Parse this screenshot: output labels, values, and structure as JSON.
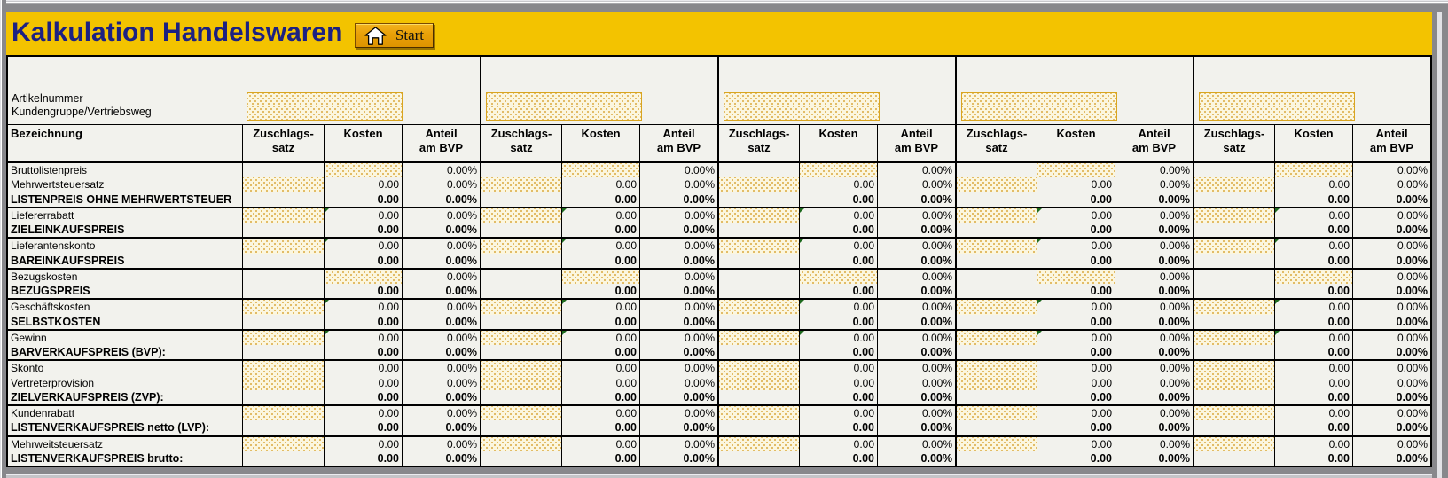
{
  "header": {
    "title": "Kalkulation Handelswaren",
    "start_label": "Start"
  },
  "form": {
    "labels": [
      "Artikelnummer",
      "Kundengruppe/Vertriebsweg"
    ]
  },
  "table": {
    "bezeichnung_header": "Bezeichnung",
    "group_count": 5,
    "column_headers": {
      "zuschlag_line1": "Zuschlags-",
      "zuschlag_line2": "satz",
      "kosten": "Kosten",
      "anteil_line1": "Anteil",
      "anteil_line2": "am BVP"
    },
    "sections": [
      {
        "rows": [
          {
            "label": "Bruttolistenpreis",
            "zuschlag": "",
            "kosten": "input",
            "anteil": "0.00%"
          },
          {
            "label": "Mehrwertsteuersatz",
            "zuschlag": "input",
            "kosten": "0.00",
            "anteil": "0.00%"
          },
          {
            "label": "LISTENPREIS OHNE MEHRWERTSTEUER",
            "bold": true,
            "zuschlag": "",
            "kosten": "0.00",
            "anteil": "0.00%"
          }
        ]
      },
      {
        "rows": [
          {
            "label": "Liefererrabatt",
            "zuschlag": "input",
            "kosten": "0.00",
            "anteil": "0.00%",
            "marker": true
          },
          {
            "label": "ZIELEINKAUFSPREIS",
            "bold": true,
            "zuschlag": "",
            "kosten": "0.00",
            "anteil": "0.00%"
          }
        ]
      },
      {
        "rows": [
          {
            "label": "Lieferantenskonto",
            "zuschlag": "input",
            "kosten": "0.00",
            "anteil": "0.00%",
            "marker": true
          },
          {
            "label": "BAREINKAUFSPREIS",
            "bold": true,
            "zuschlag": "",
            "kosten": "0.00",
            "anteil": "0.00%"
          }
        ]
      },
      {
        "rows": [
          {
            "label": "Bezugskosten",
            "zuschlag": "",
            "kosten": "input",
            "anteil": "0.00%"
          },
          {
            "label": "BEZUGSPREIS",
            "bold": true,
            "zuschlag": "",
            "kosten": "0.00",
            "anteil": "0.00%"
          }
        ]
      },
      {
        "rows": [
          {
            "label": "Geschäftskosten",
            "zuschlag": "input",
            "kosten": "0.00",
            "anteil": "0.00%",
            "marker": true
          },
          {
            "label": "SELBSTKOSTEN",
            "bold": true,
            "zuschlag": "",
            "kosten": "0.00",
            "anteil": "0.00%"
          }
        ]
      },
      {
        "rows": [
          {
            "label": "Gewinn",
            "zuschlag": "input",
            "kosten": "0.00",
            "anteil": "0.00%",
            "marker": true
          },
          {
            "label": "BARVERKAUFSPREIS (BVP):",
            "bold": true,
            "zuschlag": "",
            "kosten": "0.00",
            "anteil": "0.00%"
          }
        ]
      },
      {
        "rows": [
          {
            "label": "Skonto",
            "zuschlag": "input",
            "kosten": "0.00",
            "anteil": "0.00%"
          },
          {
            "label": "Vertreterprovision",
            "zuschlag": "input",
            "kosten": "0.00",
            "anteil": "0.00%"
          },
          {
            "label": "ZIELVERKAUFSPREIS (ZVP):",
            "bold": true,
            "zuschlag": "",
            "kosten": "0.00",
            "anteil": "0.00%"
          }
        ]
      },
      {
        "rows": [
          {
            "label": "Kundenrabatt",
            "zuschlag": "input",
            "kosten": "0.00",
            "anteil": "0.00%"
          },
          {
            "label": "LISTENVERKAUFSPREIS netto (LVP):",
            "bold": true,
            "zuschlag": "",
            "kosten": "0.00",
            "anteil": "0.00%"
          }
        ]
      },
      {
        "rows": [
          {
            "label": "Mehrweitsteuersatz",
            "zuschlag": "input",
            "kosten": "0.00",
            "anteil": "0.00%"
          },
          {
            "label": "LISTENVERKAUFSPREIS brutto:",
            "bold": true,
            "zuschlag": "",
            "kosten": "0.00",
            "anteil": "0.00%"
          }
        ]
      }
    ]
  },
  "colors": {
    "band_yellow": "#F3C300",
    "title_navy": "#1c2182",
    "button_amber": "#E8A008",
    "input_dot": "#D9A93F",
    "input_bg": "#FBF6DF",
    "marker_green": "#1e6b1e",
    "sheet_bg": "#F2F2ED"
  }
}
